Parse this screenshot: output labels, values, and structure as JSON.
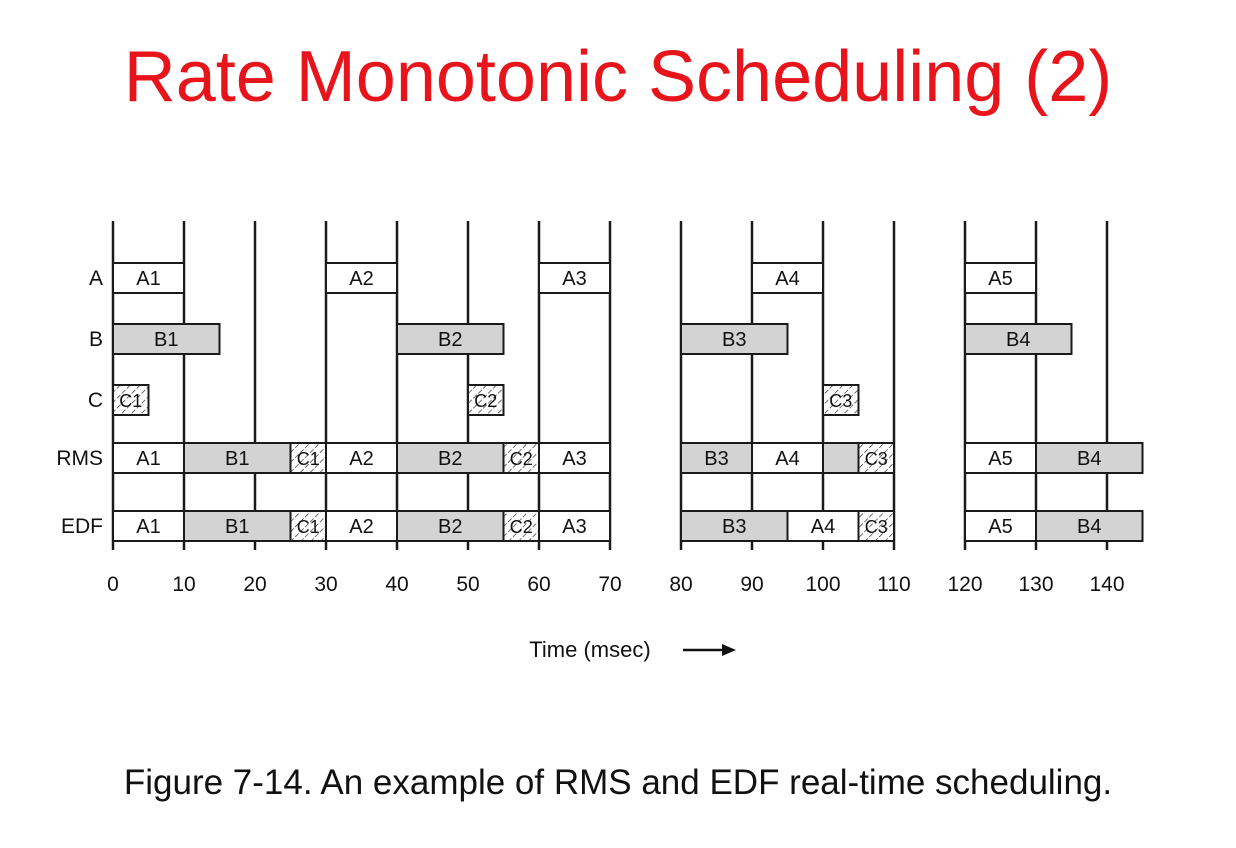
{
  "slide": {
    "title": "Rate Monotonic Scheduling (2)",
    "caption": "Figure 7-14. An example of RMS and EDF real-time scheduling."
  },
  "diagram": {
    "x_label": "Time (msec)",
    "arrow": "→",
    "rows": [
      "A",
      "B",
      "C",
      "RMS",
      "EDF"
    ],
    "ticks": [
      0,
      10,
      20,
      30,
      40,
      50,
      60,
      70,
      80,
      90,
      100,
      110,
      120,
      130,
      140
    ],
    "period_lines": [
      0,
      10,
      20,
      30,
      40,
      50,
      60,
      70,
      80,
      90,
      100,
      110,
      120,
      130,
      140
    ],
    "segments": [
      {
        "name": "time-0-70",
        "start": 0,
        "end": 70
      },
      {
        "name": "time-80-110",
        "start": 80,
        "end": 110
      },
      {
        "name": "time-120-145",
        "start": 120,
        "end": 145
      }
    ],
    "colors": {
      "white": "#ffffff",
      "gray": "#d3d3d3",
      "outline": "#1a1a1a"
    },
    "blocks": [
      {
        "row": "A",
        "label": "A1",
        "start": 0,
        "end": 10,
        "fill": "white"
      },
      {
        "row": "A",
        "label": "A2",
        "start": 30,
        "end": 40,
        "fill": "white"
      },
      {
        "row": "A",
        "label": "A3",
        "start": 60,
        "end": 70,
        "fill": "white"
      },
      {
        "row": "A",
        "label": "A4",
        "start": 90,
        "end": 100,
        "fill": "white"
      },
      {
        "row": "A",
        "label": "A5",
        "start": 120,
        "end": 130,
        "fill": "white"
      },
      {
        "row": "B",
        "label": "B1",
        "start": 0,
        "end": 15,
        "fill": "gray"
      },
      {
        "row": "B",
        "label": "B2",
        "start": 40,
        "end": 55,
        "fill": "gray"
      },
      {
        "row": "B",
        "label": "B3",
        "start": 80,
        "end": 95,
        "fill": "gray"
      },
      {
        "row": "B",
        "label": "B4",
        "start": 120,
        "end": 135,
        "fill": "gray"
      },
      {
        "row": "C",
        "label": "C1",
        "start": 0,
        "end": 5,
        "fill": "hatch"
      },
      {
        "row": "C",
        "label": "C2",
        "start": 50,
        "end": 55,
        "fill": "hatch"
      },
      {
        "row": "C",
        "label": "C3",
        "start": 100,
        "end": 105,
        "fill": "hatch"
      },
      {
        "row": "RMS",
        "label": "A1",
        "start": 0,
        "end": 10,
        "fill": "white"
      },
      {
        "row": "RMS",
        "label": "B1",
        "start": 10,
        "end": 25,
        "fill": "gray"
      },
      {
        "row": "RMS",
        "label": "C1",
        "start": 25,
        "end": 30,
        "fill": "hatch"
      },
      {
        "row": "RMS",
        "label": "A2",
        "start": 30,
        "end": 40,
        "fill": "white"
      },
      {
        "row": "RMS",
        "label": "B2",
        "start": 40,
        "end": 55,
        "fill": "gray"
      },
      {
        "row": "RMS",
        "label": "C2",
        "start": 55,
        "end": 60,
        "fill": "hatch"
      },
      {
        "row": "RMS",
        "label": "A3",
        "start": 60,
        "end": 70,
        "fill": "white"
      },
      {
        "row": "RMS",
        "label": "B3",
        "start": 80,
        "end": 90,
        "fill": "gray"
      },
      {
        "row": "RMS",
        "label": "A4",
        "start": 90,
        "end": 100,
        "fill": "white"
      },
      {
        "row": "RMS",
        "label": "",
        "start": 100,
        "end": 105,
        "fill": "gray"
      },
      {
        "row": "RMS",
        "label": "C3",
        "start": 105,
        "end": 110,
        "fill": "hatch"
      },
      {
        "row": "RMS",
        "label": "A5",
        "start": 120,
        "end": 130,
        "fill": "white"
      },
      {
        "row": "RMS",
        "label": "B4",
        "start": 130,
        "end": 145,
        "fill": "gray"
      },
      {
        "row": "EDF",
        "label": "A1",
        "start": 0,
        "end": 10,
        "fill": "white"
      },
      {
        "row": "EDF",
        "label": "B1",
        "start": 10,
        "end": 25,
        "fill": "gray"
      },
      {
        "row": "EDF",
        "label": "C1",
        "start": 25,
        "end": 30,
        "fill": "hatch"
      },
      {
        "row": "EDF",
        "label": "A2",
        "start": 30,
        "end": 40,
        "fill": "white"
      },
      {
        "row": "EDF",
        "label": "B2",
        "start": 40,
        "end": 55,
        "fill": "gray"
      },
      {
        "row": "EDF",
        "label": "C2",
        "start": 55,
        "end": 60,
        "fill": "hatch"
      },
      {
        "row": "EDF",
        "label": "A3",
        "start": 60,
        "end": 70,
        "fill": "white"
      },
      {
        "row": "EDF",
        "label": "B3",
        "start": 80,
        "end": 95,
        "fill": "gray"
      },
      {
        "row": "EDF",
        "label": "A4",
        "start": 95,
        "end": 105,
        "fill": "white"
      },
      {
        "row": "EDF",
        "label": "C3",
        "start": 105,
        "end": 110,
        "fill": "hatch"
      },
      {
        "row": "EDF",
        "label": "A5",
        "start": 120,
        "end": 130,
        "fill": "white"
      },
      {
        "row": "EDF",
        "label": "B4",
        "start": 130,
        "end": 145,
        "fill": "gray"
      }
    ]
  }
}
